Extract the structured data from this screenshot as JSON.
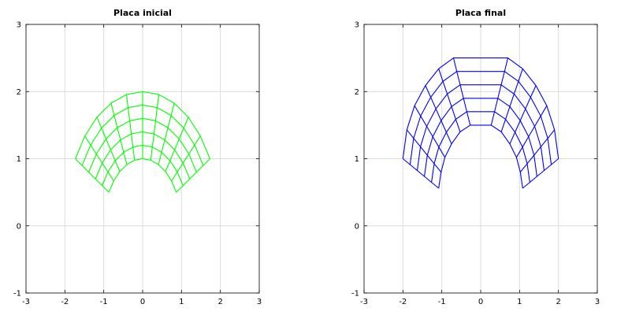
{
  "chart_data": [
    {
      "type": "line",
      "title": "Placa inicial",
      "xlabel": "",
      "ylabel": "",
      "xlim": [
        -3,
        3
      ],
      "ylim": [
        -1,
        3
      ],
      "xticks": [
        -3,
        -2,
        -1,
        0,
        1,
        2,
        3
      ],
      "yticks": [
        -1,
        0,
        1,
        2,
        3
      ],
      "grid": true,
      "color": "#00ff00",
      "mesh": {
        "shape": "annular-sector",
        "center": [
          0,
          0
        ],
        "radii": [
          1.0,
          1.2,
          1.4,
          1.6,
          1.8,
          2.0
        ],
        "angles_deg": [
          30,
          42,
          54,
          66,
          78,
          90,
          102,
          114,
          126,
          138,
          150
        ]
      }
    },
    {
      "type": "line",
      "title": "Placa final",
      "xlabel": "",
      "ylabel": "",
      "xlim": [
        -3,
        3
      ],
      "ylim": [
        -1,
        3
      ],
      "xticks": [
        -3,
        -2,
        -1,
        0,
        1,
        2,
        3
      ],
      "yticks": [
        -1,
        0,
        1,
        2,
        3
      ],
      "grid": true,
      "color": "#0000ff",
      "mesh": {
        "shape": "deformed-annular-sector",
        "inner_edge": [
          [
            1.08,
            0.56
          ],
          [
            1.02,
            0.8
          ],
          [
            0.92,
            1.02
          ],
          [
            0.75,
            1.22
          ],
          [
            0.53,
            1.4
          ],
          [
            0.27,
            1.5
          ],
          [
            -0.27,
            1.5
          ],
          [
            -0.53,
            1.4
          ],
          [
            -0.75,
            1.22
          ],
          [
            -0.92,
            1.02
          ],
          [
            -1.02,
            0.8
          ],
          [
            -1.08,
            0.56
          ]
        ],
        "outer_edge": [
          [
            2.0,
            1.0
          ],
          [
            1.9,
            1.43
          ],
          [
            1.7,
            1.79
          ],
          [
            1.42,
            2.09
          ],
          [
            1.08,
            2.34
          ],
          [
            0.7,
            2.5
          ],
          [
            -0.7,
            2.5
          ],
          [
            -1.08,
            2.34
          ],
          [
            -1.42,
            2.09
          ],
          [
            -1.7,
            1.79
          ],
          [
            -1.9,
            1.43
          ],
          [
            -2.0,
            1.0
          ]
        ],
        "radial_divisions": 5
      }
    }
  ]
}
